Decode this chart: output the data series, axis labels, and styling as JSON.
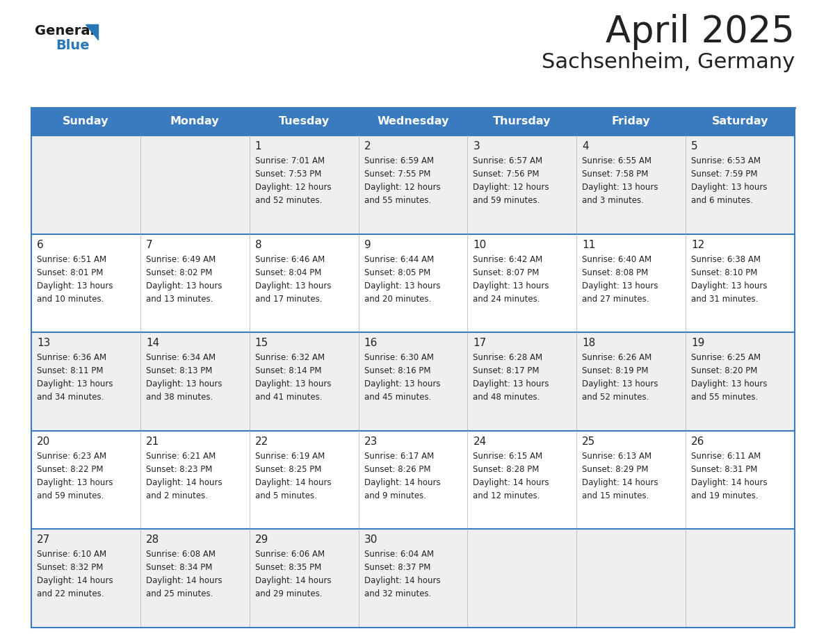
{
  "title": "April 2025",
  "subtitle": "Sachsenheim, Germany",
  "header_color": "#3a7abf",
  "header_text_color": "#ffffff",
  "day_names": [
    "Sunday",
    "Monday",
    "Tuesday",
    "Wednesday",
    "Thursday",
    "Friday",
    "Saturday"
  ],
  "row_colors": [
    "#efefef",
    "#ffffff"
  ],
  "border_color": "#3a7abf",
  "text_color": "#222222",
  "logo_general_color": "#1a1a1a",
  "logo_blue_color": "#2878b8",
  "weeks": [
    [
      {
        "day": null,
        "info": null
      },
      {
        "day": null,
        "info": null
      },
      {
        "day": 1,
        "info": "Sunrise: 7:01 AM\nSunset: 7:53 PM\nDaylight: 12 hours\nand 52 minutes."
      },
      {
        "day": 2,
        "info": "Sunrise: 6:59 AM\nSunset: 7:55 PM\nDaylight: 12 hours\nand 55 minutes."
      },
      {
        "day": 3,
        "info": "Sunrise: 6:57 AM\nSunset: 7:56 PM\nDaylight: 12 hours\nand 59 minutes."
      },
      {
        "day": 4,
        "info": "Sunrise: 6:55 AM\nSunset: 7:58 PM\nDaylight: 13 hours\nand 3 minutes."
      },
      {
        "day": 5,
        "info": "Sunrise: 6:53 AM\nSunset: 7:59 PM\nDaylight: 13 hours\nand 6 minutes."
      }
    ],
    [
      {
        "day": 6,
        "info": "Sunrise: 6:51 AM\nSunset: 8:01 PM\nDaylight: 13 hours\nand 10 minutes."
      },
      {
        "day": 7,
        "info": "Sunrise: 6:49 AM\nSunset: 8:02 PM\nDaylight: 13 hours\nand 13 minutes."
      },
      {
        "day": 8,
        "info": "Sunrise: 6:46 AM\nSunset: 8:04 PM\nDaylight: 13 hours\nand 17 minutes."
      },
      {
        "day": 9,
        "info": "Sunrise: 6:44 AM\nSunset: 8:05 PM\nDaylight: 13 hours\nand 20 minutes."
      },
      {
        "day": 10,
        "info": "Sunrise: 6:42 AM\nSunset: 8:07 PM\nDaylight: 13 hours\nand 24 minutes."
      },
      {
        "day": 11,
        "info": "Sunrise: 6:40 AM\nSunset: 8:08 PM\nDaylight: 13 hours\nand 27 minutes."
      },
      {
        "day": 12,
        "info": "Sunrise: 6:38 AM\nSunset: 8:10 PM\nDaylight: 13 hours\nand 31 minutes."
      }
    ],
    [
      {
        "day": 13,
        "info": "Sunrise: 6:36 AM\nSunset: 8:11 PM\nDaylight: 13 hours\nand 34 minutes."
      },
      {
        "day": 14,
        "info": "Sunrise: 6:34 AM\nSunset: 8:13 PM\nDaylight: 13 hours\nand 38 minutes."
      },
      {
        "day": 15,
        "info": "Sunrise: 6:32 AM\nSunset: 8:14 PM\nDaylight: 13 hours\nand 41 minutes."
      },
      {
        "day": 16,
        "info": "Sunrise: 6:30 AM\nSunset: 8:16 PM\nDaylight: 13 hours\nand 45 minutes."
      },
      {
        "day": 17,
        "info": "Sunrise: 6:28 AM\nSunset: 8:17 PM\nDaylight: 13 hours\nand 48 minutes."
      },
      {
        "day": 18,
        "info": "Sunrise: 6:26 AM\nSunset: 8:19 PM\nDaylight: 13 hours\nand 52 minutes."
      },
      {
        "day": 19,
        "info": "Sunrise: 6:25 AM\nSunset: 8:20 PM\nDaylight: 13 hours\nand 55 minutes."
      }
    ],
    [
      {
        "day": 20,
        "info": "Sunrise: 6:23 AM\nSunset: 8:22 PM\nDaylight: 13 hours\nand 59 minutes."
      },
      {
        "day": 21,
        "info": "Sunrise: 6:21 AM\nSunset: 8:23 PM\nDaylight: 14 hours\nand 2 minutes."
      },
      {
        "day": 22,
        "info": "Sunrise: 6:19 AM\nSunset: 8:25 PM\nDaylight: 14 hours\nand 5 minutes."
      },
      {
        "day": 23,
        "info": "Sunrise: 6:17 AM\nSunset: 8:26 PM\nDaylight: 14 hours\nand 9 minutes."
      },
      {
        "day": 24,
        "info": "Sunrise: 6:15 AM\nSunset: 8:28 PM\nDaylight: 14 hours\nand 12 minutes."
      },
      {
        "day": 25,
        "info": "Sunrise: 6:13 AM\nSunset: 8:29 PM\nDaylight: 14 hours\nand 15 minutes."
      },
      {
        "day": 26,
        "info": "Sunrise: 6:11 AM\nSunset: 8:31 PM\nDaylight: 14 hours\nand 19 minutes."
      }
    ],
    [
      {
        "day": 27,
        "info": "Sunrise: 6:10 AM\nSunset: 8:32 PM\nDaylight: 14 hours\nand 22 minutes."
      },
      {
        "day": 28,
        "info": "Sunrise: 6:08 AM\nSunset: 8:34 PM\nDaylight: 14 hours\nand 25 minutes."
      },
      {
        "day": 29,
        "info": "Sunrise: 6:06 AM\nSunset: 8:35 PM\nDaylight: 14 hours\nand 29 minutes."
      },
      {
        "day": 30,
        "info": "Sunrise: 6:04 AM\nSunset: 8:37 PM\nDaylight: 14 hours\nand 32 minutes."
      },
      {
        "day": null,
        "info": null
      },
      {
        "day": null,
        "info": null
      },
      {
        "day": null,
        "info": null
      }
    ]
  ]
}
